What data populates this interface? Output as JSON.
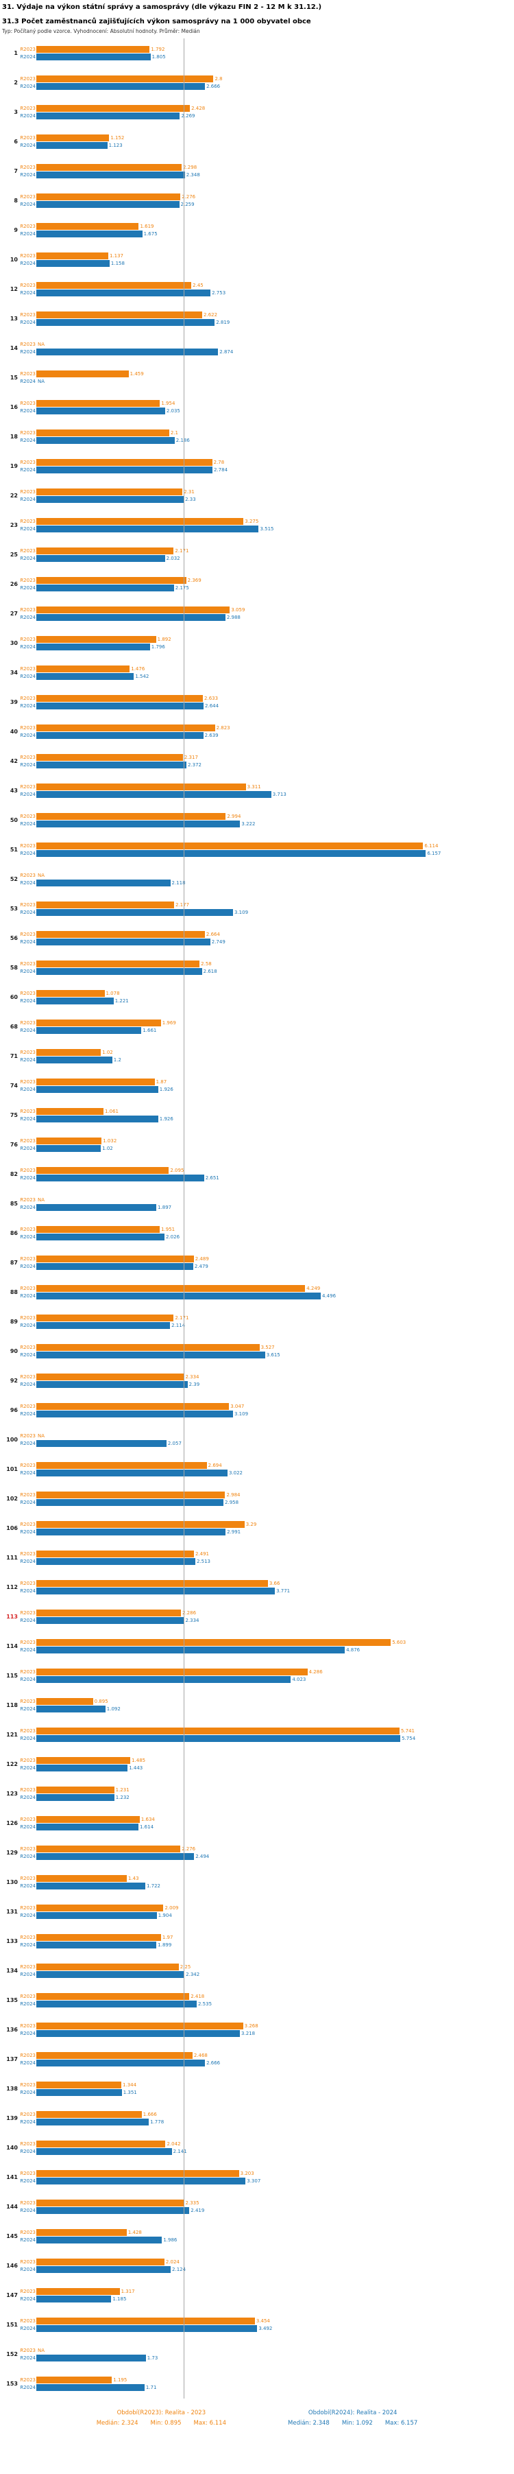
{
  "header": {
    "title": "31. Výdaje na výkon státní správy a samosprávy (dle výkazu FIN 2 - 12 M k 31.12.)",
    "subtitle": "31.3 Počet zaměstnanců zajišťujících výkon samosprávy na 1 000 obyvatel obce",
    "meta": "Typ: Počítaný podle vzorce. Vyhodnocení: Absolutní hodnoty. Průměr: Medián"
  },
  "chart_data": {
    "type": "bar",
    "orientation": "horizontal",
    "title": "31.3 Počet zaměstnanců zajišťujících výkon samosprávy na 1 000 obyvatel obce",
    "xlabel": "",
    "ylabel": "obec (číslo)",
    "xlim": [
      0,
      6.5
    ],
    "grid": false,
    "median_line": 2.324,
    "na_label": "NA",
    "highlight_color": "#d62728",
    "series": [
      {
        "name": "R2023",
        "color": "#f08410",
        "legend_label": "Období(R2023): Realita - 2023",
        "median": 2.324,
        "min": 0.895,
        "max": 6.114,
        "median_text": "Medián: 2.324",
        "min_text": "Min: 0.895",
        "max_text": "Max: 6.114"
      },
      {
        "name": "R2024",
        "color": "#1f77b4",
        "legend_label": "Období(R2024): Realita - 2024",
        "median": 2.348,
        "min": 1.092,
        "max": 6.157,
        "median_text": "Medián: 2.348",
        "min_text": "Min: 1.092",
        "max_text": "Max: 6.157"
      }
    ],
    "groups": [
      {
        "label": "1",
        "values": [
          1.792,
          1.805
        ]
      },
      {
        "label": "2",
        "values": [
          2.8,
          2.666
        ]
      },
      {
        "label": "3",
        "values": [
          2.428,
          2.269
        ]
      },
      {
        "label": "6",
        "values": [
          1.152,
          1.123
        ]
      },
      {
        "label": "7",
        "values": [
          2.298,
          2.348
        ]
      },
      {
        "label": "8",
        "values": [
          2.276,
          2.259
        ]
      },
      {
        "label": "9",
        "values": [
          1.619,
          1.675
        ]
      },
      {
        "label": "10",
        "values": [
          1.137,
          1.158
        ]
      },
      {
        "label": "12",
        "values": [
          2.45,
          2.753
        ]
      },
      {
        "label": "13",
        "values": [
          2.622,
          2.819
        ]
      },
      {
        "label": "14",
        "values": [
          null,
          2.874
        ]
      },
      {
        "label": "15",
        "values": [
          1.459,
          null
        ]
      },
      {
        "label": "16",
        "values": [
          1.954,
          2.035
        ]
      },
      {
        "label": "18",
        "values": [
          2.1,
          2.186
        ]
      },
      {
        "label": "19",
        "values": [
          2.78,
          2.784
        ]
      },
      {
        "label": "22",
        "values": [
          2.31,
          2.33
        ]
      },
      {
        "label": "23",
        "values": [
          3.275,
          3.515
        ]
      },
      {
        "label": "25",
        "values": [
          2.171,
          2.032
        ]
      },
      {
        "label": "26",
        "values": [
          2.369,
          2.175
        ]
      },
      {
        "label": "27",
        "values": [
          3.059,
          2.988
        ]
      },
      {
        "label": "30",
        "values": [
          1.892,
          1.796
        ]
      },
      {
        "label": "34",
        "values": [
          1.476,
          1.542
        ]
      },
      {
        "label": "39",
        "values": [
          2.633,
          2.644
        ]
      },
      {
        "label": "40",
        "values": [
          2.823,
          2.639
        ]
      },
      {
        "label": "42",
        "values": [
          2.317,
          2.372
        ]
      },
      {
        "label": "43",
        "values": [
          3.311,
          3.713
        ]
      },
      {
        "label": "50",
        "values": [
          2.994,
          3.222
        ]
      },
      {
        "label": "51",
        "values": [
          6.114,
          6.157
        ]
      },
      {
        "label": "52",
        "values": [
          null,
          2.118
        ]
      },
      {
        "label": "53",
        "values": [
          2.177,
          3.109
        ]
      },
      {
        "label": "56",
        "values": [
          2.664,
          2.749
        ]
      },
      {
        "label": "58",
        "values": [
          2.58,
          2.618
        ]
      },
      {
        "label": "60",
        "values": [
          1.078,
          1.221
        ]
      },
      {
        "label": "68",
        "values": [
          1.969,
          1.661
        ]
      },
      {
        "label": "71",
        "values": [
          1.02,
          1.2
        ]
      },
      {
        "label": "74",
        "values": [
          1.87,
          1.926
        ]
      },
      {
        "label": "75",
        "values": [
          1.061,
          1.926
        ]
      },
      {
        "label": "76",
        "values": [
          1.032,
          1.02
        ]
      },
      {
        "label": "82",
        "values": [
          2.095,
          2.651
        ]
      },
      {
        "label": "85",
        "values": [
          null,
          1.897
        ]
      },
      {
        "label": "86",
        "values": [
          1.951,
          2.026
        ]
      },
      {
        "label": "87",
        "values": [
          2.489,
          2.479
        ]
      },
      {
        "label": "88",
        "values": [
          4.249,
          4.496
        ]
      },
      {
        "label": "89",
        "values": [
          2.171,
          2.114
        ]
      },
      {
        "label": "90",
        "values": [
          3.527,
          3.615
        ]
      },
      {
        "label": "92",
        "values": [
          2.334,
          2.39
        ]
      },
      {
        "label": "96",
        "values": [
          3.047,
          3.109
        ]
      },
      {
        "label": "100",
        "values": [
          null,
          2.057
        ]
      },
      {
        "label": "101",
        "values": [
          2.694,
          3.022
        ]
      },
      {
        "label": "102",
        "values": [
          2.984,
          2.958
        ]
      },
      {
        "label": "106",
        "values": [
          3.29,
          2.991
        ]
      },
      {
        "label": "111",
        "values": [
          2.491,
          2.513
        ]
      },
      {
        "label": "112",
        "values": [
          3.66,
          3.771
        ]
      },
      {
        "label": "113",
        "values": [
          2.286,
          2.334
        ],
        "highlight": true
      },
      {
        "label": "114",
        "values": [
          5.603,
          4.876
        ]
      },
      {
        "label": "115",
        "values": [
          4.286,
          4.023
        ]
      },
      {
        "label": "118",
        "values": [
          0.895,
          1.092
        ]
      },
      {
        "label": "121",
        "values": [
          5.741,
          5.754
        ]
      },
      {
        "label": "122",
        "values": [
          1.485,
          1.443
        ]
      },
      {
        "label": "123",
        "values": [
          1.231,
          1.232
        ]
      },
      {
        "label": "126",
        "values": [
          1.634,
          1.614
        ]
      },
      {
        "label": "129",
        "values": [
          2.276,
          2.494
        ]
      },
      {
        "label": "130",
        "values": [
          1.43,
          1.722
        ]
      },
      {
        "label": "131",
        "values": [
          2.009,
          1.904
        ]
      },
      {
        "label": "133",
        "values": [
          1.97,
          1.899
        ]
      },
      {
        "label": "134",
        "values": [
          2.25,
          2.342
        ]
      },
      {
        "label": "135",
        "values": [
          2.418,
          2.535
        ]
      },
      {
        "label": "136",
        "values": [
          3.268,
          3.218
        ]
      },
      {
        "label": "137",
        "values": [
          2.468,
          2.666
        ]
      },
      {
        "label": "138",
        "values": [
          1.344,
          1.351
        ]
      },
      {
        "label": "139",
        "values": [
          1.666,
          1.778
        ]
      },
      {
        "label": "140",
        "values": [
          2.042,
          2.141
        ]
      },
      {
        "label": "141",
        "values": [
          3.203,
          3.307
        ]
      },
      {
        "label": "144",
        "values": [
          2.335,
          2.419
        ]
      },
      {
        "label": "145",
        "values": [
          1.428,
          1.986
        ]
      },
      {
        "label": "146",
        "values": [
          2.024,
          2.124
        ]
      },
      {
        "label": "147",
        "values": [
          1.317,
          1.185
        ]
      },
      {
        "label": "151",
        "values": [
          3.454,
          3.492
        ]
      },
      {
        "label": "152",
        "values": [
          null,
          1.73
        ]
      },
      {
        "label": "153",
        "values": [
          1.195,
          1.71
        ]
      }
    ]
  }
}
